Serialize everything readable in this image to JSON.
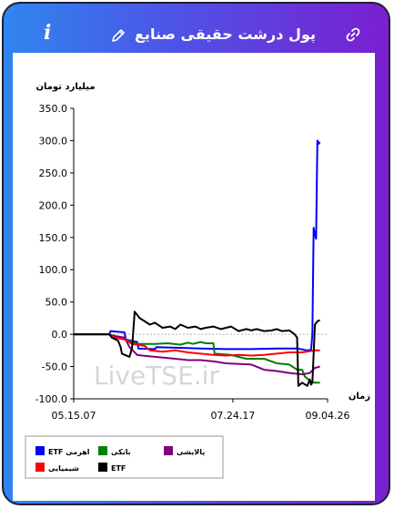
{
  "header": {
    "title": "پول درشت حقیقی صنایع",
    "info_symbol": "i"
  },
  "icons": {
    "info": "info-icon",
    "edit": "pencil-icon",
    "link": "link-icon"
  },
  "watermark": "LiveTSE.ir",
  "chart_data": {
    "type": "line",
    "ylabel": "میلیارد تومان",
    "xlabel": "زمان",
    "ylim": [
      -100,
      350
    ],
    "yticks": [
      350,
      300,
      250,
      200,
      150,
      100,
      50,
      0,
      -50,
      -100
    ],
    "ytick_labels": [
      "350.0",
      "300.0",
      "250.0",
      "200.0",
      "150.0",
      "100.0",
      "50.0",
      "0.0",
      "-50.0",
      "-100.0"
    ],
    "x_tick_labels": [
      {
        "t": 0,
        "label": "05.15.07"
      },
      {
        "t": 0.627,
        "label": "07.24.17"
      },
      {
        "t": 1,
        "label": "09.04.26"
      }
    ],
    "grid": false,
    "legend_position": "bottom",
    "series": [
      {
        "name": "ETF اهرمی",
        "color": "#0000ff",
        "points": [
          [
            0.0,
            0
          ],
          [
            0.14,
            0
          ],
          [
            0.145,
            5
          ],
          [
            0.2,
            3
          ],
          [
            0.205,
            -8
          ],
          [
            0.25,
            -12
          ],
          [
            0.255,
            -22
          ],
          [
            0.32,
            -23
          ],
          [
            0.325,
            -20
          ],
          [
            0.42,
            -21
          ],
          [
            0.5,
            -22
          ],
          [
            0.6,
            -23
          ],
          [
            0.7,
            -23
          ],
          [
            0.8,
            -22
          ],
          [
            0.88,
            -22
          ],
          [
            0.92,
            -25
          ],
          [
            0.935,
            -24
          ],
          [
            0.94,
            0
          ],
          [
            0.945,
            165
          ],
          [
            0.95,
            155
          ],
          [
            0.955,
            148
          ],
          [
            0.96,
            300
          ],
          [
            0.965,
            295
          ],
          [
            0.97,
            298
          ]
        ]
      },
      {
        "name": "بانکی",
        "color": "#008000",
        "points": [
          [
            0.0,
            0
          ],
          [
            0.14,
            0
          ],
          [
            0.18,
            -5
          ],
          [
            0.2,
            -8
          ],
          [
            0.25,
            -15
          ],
          [
            0.32,
            -15
          ],
          [
            0.37,
            -14
          ],
          [
            0.42,
            -16
          ],
          [
            0.45,
            -13
          ],
          [
            0.47,
            -15
          ],
          [
            0.5,
            -12
          ],
          [
            0.52,
            -14
          ],
          [
            0.55,
            -14
          ],
          [
            0.555,
            -30
          ],
          [
            0.62,
            -32
          ],
          [
            0.68,
            -38
          ],
          [
            0.75,
            -38
          ],
          [
            0.8,
            -45
          ],
          [
            0.85,
            -47
          ],
          [
            0.88,
            -55
          ],
          [
            0.9,
            -55
          ],
          [
            0.91,
            -65
          ],
          [
            0.93,
            -72
          ],
          [
            0.95,
            -75
          ],
          [
            0.97,
            -75
          ]
        ]
      },
      {
        "name": "پالایشی",
        "color": "#800080",
        "points": [
          [
            0.0,
            0
          ],
          [
            0.14,
            0
          ],
          [
            0.15,
            -2
          ],
          [
            0.2,
            -5
          ],
          [
            0.22,
            -20
          ],
          [
            0.25,
            -32
          ],
          [
            0.27,
            -33
          ],
          [
            0.32,
            -35
          ],
          [
            0.4,
            -38
          ],
          [
            0.45,
            -40
          ],
          [
            0.5,
            -40
          ],
          [
            0.55,
            -42
          ],
          [
            0.6,
            -45
          ],
          [
            0.7,
            -47
          ],
          [
            0.75,
            -55
          ],
          [
            0.8,
            -57
          ],
          [
            0.85,
            -60
          ],
          [
            0.9,
            -62
          ],
          [
            0.93,
            -60
          ],
          [
            0.95,
            -52
          ],
          [
            0.97,
            -50
          ]
        ]
      },
      {
        "name": "شیمیایی",
        "color": "#ff0000",
        "points": [
          [
            0.0,
            0
          ],
          [
            0.14,
            0
          ],
          [
            0.16,
            -5
          ],
          [
            0.2,
            -8
          ],
          [
            0.23,
            -15
          ],
          [
            0.28,
            -18
          ],
          [
            0.3,
            -25
          ],
          [
            0.35,
            -27
          ],
          [
            0.4,
            -25
          ],
          [
            0.45,
            -28
          ],
          [
            0.5,
            -30
          ],
          [
            0.55,
            -32
          ],
          [
            0.6,
            -33
          ],
          [
            0.65,
            -32
          ],
          [
            0.7,
            -33
          ],
          [
            0.75,
            -32
          ],
          [
            0.8,
            -30
          ],
          [
            0.85,
            -28
          ],
          [
            0.88,
            -28
          ],
          [
            0.9,
            -28
          ],
          [
            0.95,
            -25
          ],
          [
            0.97,
            -25
          ]
        ]
      },
      {
        "name": "ETF",
        "color": "#000000",
        "points": [
          [
            0.0,
            0
          ],
          [
            0.14,
            0
          ],
          [
            0.15,
            -5
          ],
          [
            0.175,
            -10
          ],
          [
            0.185,
            -20
          ],
          [
            0.19,
            -30
          ],
          [
            0.22,
            -35
          ],
          [
            0.23,
            -20
          ],
          [
            0.24,
            35
          ],
          [
            0.26,
            25
          ],
          [
            0.28,
            20
          ],
          [
            0.3,
            15
          ],
          [
            0.32,
            18
          ],
          [
            0.35,
            10
          ],
          [
            0.38,
            12
          ],
          [
            0.4,
            8
          ],
          [
            0.42,
            15
          ],
          [
            0.45,
            10
          ],
          [
            0.48,
            12
          ],
          [
            0.5,
            8
          ],
          [
            0.52,
            10
          ],
          [
            0.55,
            12
          ],
          [
            0.58,
            8
          ],
          [
            0.6,
            10
          ],
          [
            0.62,
            12
          ],
          [
            0.65,
            5
          ],
          [
            0.68,
            8
          ],
          [
            0.7,
            6
          ],
          [
            0.72,
            8
          ],
          [
            0.75,
            5
          ],
          [
            0.78,
            6
          ],
          [
            0.8,
            8
          ],
          [
            0.82,
            5
          ],
          [
            0.85,
            6
          ],
          [
            0.87,
            0
          ],
          [
            0.88,
            -5
          ],
          [
            0.885,
            -80
          ],
          [
            0.9,
            -75
          ],
          [
            0.92,
            -80
          ],
          [
            0.93,
            -70
          ],
          [
            0.935,
            -78
          ],
          [
            0.94,
            -75
          ],
          [
            0.945,
            -30
          ],
          [
            0.95,
            15
          ],
          [
            0.96,
            20
          ],
          [
            0.97,
            22
          ]
        ]
      }
    ]
  }
}
